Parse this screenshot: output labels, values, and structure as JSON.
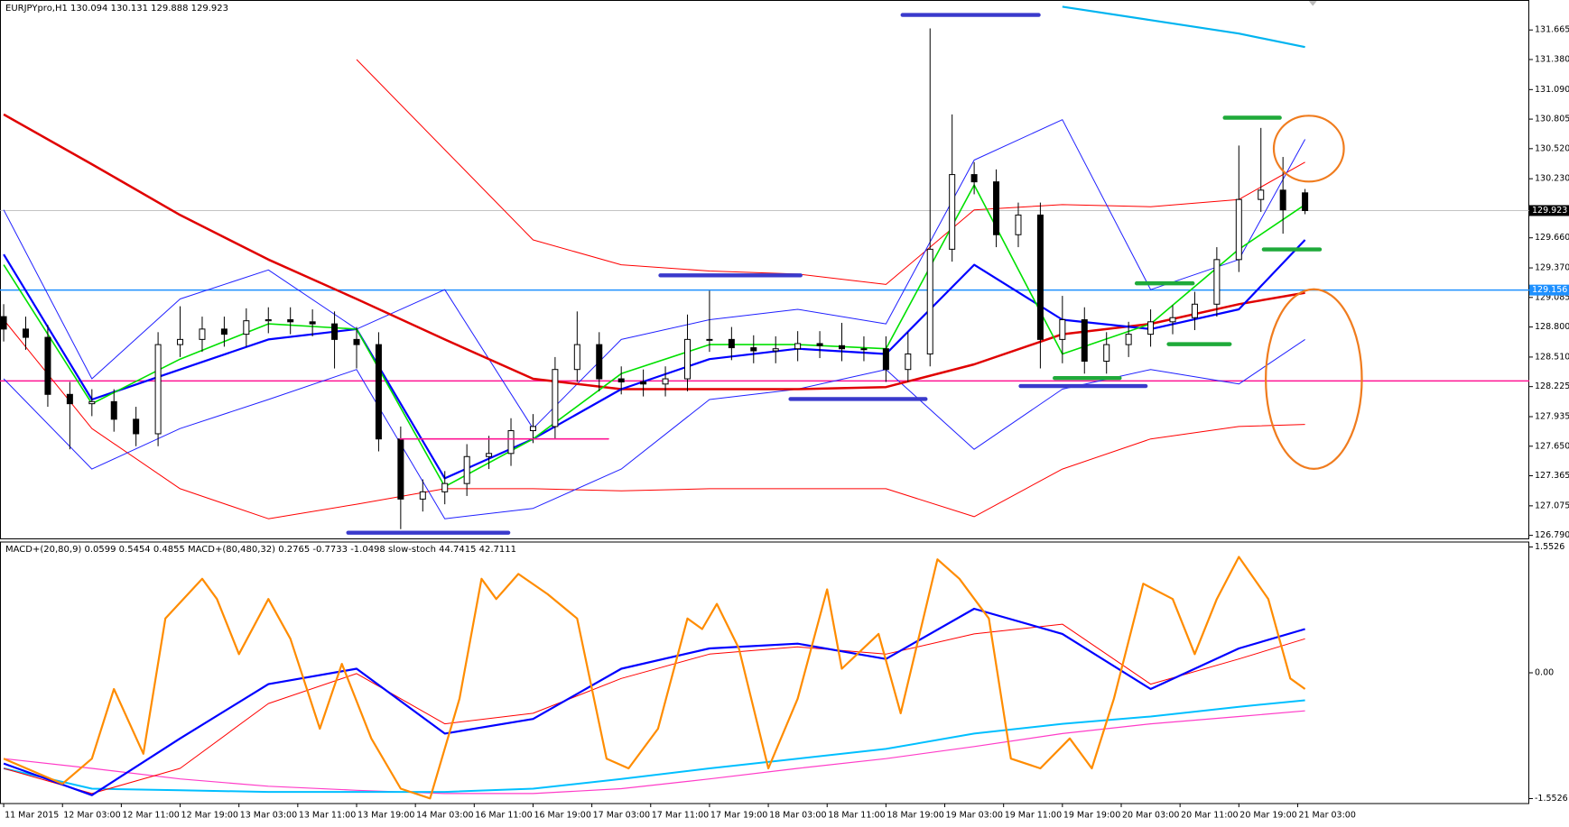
{
  "chart_data": [
    {
      "type": "candlestick",
      "title": "EURJPYpro,H1  130.094 130.131 129.888 129.923",
      "xlim": [
        -0.5,
        207.5
      ],
      "ylim": [
        126.752,
        131.954
      ],
      "yticks": [
        131.665,
        {
          "value": 131.38,
          "label": "131.380"
        },
        {
          "value": 131.09,
          "label": "131.090"
        },
        130.805,
        {
          "value": 130.52,
          "label": "130.520"
        },
        {
          "value": 130.23,
          "label": "130.230"
        },
        {
          "value": 129.66,
          "label": "129.660"
        },
        {
          "value": 129.37,
          "label": "129.370"
        },
        129.085,
        {
          "value": 128.8,
          "label": "128.800"
        },
        {
          "value": 128.51,
          "label": "128.510"
        },
        128.225,
        127.935,
        {
          "value": 127.65,
          "label": "127.650"
        },
        127.365,
        127.075,
        {
          "value": 126.79,
          "label": "126.790"
        }
      ],
      "up_color": "#ffffff",
      "down_color": "#000000",
      "x": [
        0,
        3,
        6,
        9,
        12,
        15,
        18,
        21,
        24,
        27,
        30,
        33,
        36,
        39,
        42,
        45,
        48,
        51,
        54,
        57,
        60,
        63,
        66,
        69,
        72,
        75,
        78,
        81,
        84,
        87,
        90,
        93,
        96,
        99,
        102,
        105,
        108,
        111,
        114,
        117,
        120,
        123,
        126,
        129,
        132,
        135,
        138,
        141,
        144,
        147,
        150,
        153,
        156,
        159,
        162,
        165,
        168,
        171,
        174,
        177
      ],
      "open": [
        128.9,
        128.78,
        128.7,
        128.15,
        128.06,
        128.08,
        127.91,
        127.77,
        128.63,
        128.68,
        128.78,
        128.73,
        128.86,
        128.87,
        128.85,
        128.83,
        128.68,
        128.63,
        127.72,
        127.14,
        127.21,
        127.29,
        127.55,
        127.58,
        127.8,
        127.84,
        128.39,
        128.63,
        128.3,
        128.27,
        128.25,
        128.3,
        128.68,
        128.68,
        128.6,
        128.57,
        128.59,
        128.64,
        128.62,
        128.59,
        128.59,
        128.39,
        128.54,
        129.55,
        130.27,
        130.2,
        129.69,
        129.88,
        128.68,
        128.87,
        128.47,
        128.63,
        128.73,
        128.85,
        128.89,
        129.02,
        129.45,
        130.03,
        130.12,
        130.094
      ],
      "high": [
        129.02,
        128.9,
        128.82,
        128.27,
        128.2,
        128.2,
        128.03,
        128.75,
        129.0,
        128.9,
        128.9,
        128.98,
        128.99,
        128.99,
        128.97,
        128.95,
        128.8,
        128.75,
        127.84,
        127.33,
        127.41,
        127.67,
        127.75,
        127.92,
        127.96,
        128.51,
        128.95,
        128.75,
        128.42,
        128.39,
        128.42,
        128.92,
        129.15,
        128.8,
        128.72,
        128.71,
        128.76,
        128.76,
        128.84,
        128.71,
        128.71,
        128.75,
        131.68,
        130.85,
        130.39,
        130.32,
        130.0,
        130.0,
        129.1,
        128.99,
        128.75,
        128.85,
        128.97,
        129.01,
        129.14,
        129.57,
        130.55,
        130.72,
        130.44,
        130.131
      ],
      "low": [
        128.66,
        128.58,
        128.03,
        127.62,
        127.94,
        127.79,
        127.65,
        127.65,
        128.51,
        128.56,
        128.61,
        128.61,
        128.74,
        128.73,
        128.71,
        128.4,
        128.4,
        127.6,
        126.85,
        127.02,
        127.09,
        127.17,
        127.43,
        127.46,
        127.68,
        127.72,
        128.27,
        128.18,
        128.15,
        128.13,
        128.13,
        128.18,
        128.56,
        128.48,
        128.45,
        128.45,
        128.47,
        128.5,
        128.47,
        128.47,
        128.27,
        128.27,
        128.42,
        129.43,
        130.08,
        129.57,
        129.57,
        128.4,
        128.45,
        128.35,
        128.35,
        128.51,
        128.61,
        128.73,
        128.77,
        128.9,
        129.33,
        129.91,
        129.7,
        129.888
      ],
      "close": [
        128.78,
        128.7,
        128.15,
        128.06,
        128.08,
        127.91,
        127.77,
        128.63,
        128.68,
        128.78,
        128.73,
        128.86,
        128.87,
        128.85,
        128.83,
        128.68,
        128.63,
        127.72,
        127.14,
        127.21,
        127.29,
        127.55,
        127.58,
        127.8,
        127.84,
        128.39,
        128.63,
        128.3,
        128.27,
        128.25,
        128.3,
        128.68,
        128.68,
        128.6,
        128.57,
        128.59,
        128.64,
        128.62,
        128.59,
        128.59,
        128.39,
        128.54,
        129.55,
        130.27,
        130.2,
        129.69,
        129.88,
        128.68,
        128.87,
        128.47,
        128.63,
        128.73,
        128.85,
        128.89,
        129.02,
        129.45,
        130.03,
        130.12,
        129.93,
        129.923
      ],
      "series": [
        {
          "color": "#ff0000",
          "width": 1,
          "x": [
            0,
            12,
            24,
            36,
            48,
            60,
            72,
            84,
            96,
            108,
            120,
            132,
            144,
            156,
            168,
            177
          ],
          "values": [
            null,
            null,
            null,
            null,
            131.38,
            130.51,
            129.64,
            129.4,
            129.34,
            129.31,
            129.21,
            129.93,
            129.98,
            129.96,
            130.03,
            130.39
          ]
        },
        {
          "color": "#ff0000",
          "width": 1,
          "x": [
            0,
            12,
            24,
            36,
            48,
            60,
            72,
            84,
            96,
            108,
            120,
            132,
            144,
            156,
            168,
            177
          ],
          "values": [
            128.87,
            127.82,
            127.24,
            126.95,
            127.09,
            127.24,
            127.24,
            127.22,
            127.24,
            127.24,
            127.24,
            126.97,
            127.43,
            127.72,
            127.84,
            127.86
          ]
        },
        {
          "color": "#2020ff",
          "width": 1,
          "x": [
            0,
            12,
            24,
            36,
            48,
            60,
            72,
            84,
            96,
            108,
            120,
            132,
            144,
            156,
            168,
            177
          ],
          "values": [
            129.93,
            128.3,
            129.07,
            129.35,
            128.78,
            129.16,
            127.82,
            128.68,
            128.87,
            128.97,
            128.83,
            130.41,
            130.8,
            129.16,
            129.45,
            130.61
          ]
        },
        {
          "color": "#2020ff",
          "width": 1,
          "x": [
            0,
            12,
            24,
            36,
            48,
            60,
            72,
            84,
            96,
            108,
            120,
            132,
            144,
            156,
            168,
            177
          ],
          "values": [
            128.3,
            127.43,
            127.82,
            128.1,
            128.39,
            126.95,
            127.05,
            127.43,
            128.1,
            128.2,
            128.39,
            127.62,
            128.2,
            128.39,
            128.25,
            128.68
          ]
        },
        {
          "color": "#e00000",
          "width": 2.5,
          "x": [
            0,
            12,
            24,
            36,
            48,
            60,
            72,
            84,
            96,
            108,
            120,
            132,
            144,
            156,
            168,
            177
          ],
          "values": [
            130.85,
            130.37,
            129.88,
            129.45,
            129.07,
            128.68,
            128.3,
            128.2,
            128.2,
            128.2,
            128.22,
            128.44,
            128.73,
            128.83,
            129.02,
            129.13
          ]
        },
        {
          "color": "#0000ff",
          "width": 2.2,
          "x": [
            0,
            12,
            24,
            36,
            48,
            60,
            72,
            84,
            96,
            108,
            120,
            132,
            144,
            156,
            168,
            177
          ],
          "values": [
            129.5,
            128.1,
            128.39,
            128.68,
            128.78,
            127.34,
            127.72,
            128.2,
            128.49,
            128.59,
            128.54,
            129.4,
            128.87,
            128.78,
            128.97,
            129.64
          ]
        },
        {
          "color": "#00e000",
          "width": 1.6,
          "x": [
            0,
            12,
            24,
            36,
            48,
            60,
            72,
            84,
            96,
            108,
            120,
            132,
            144,
            156,
            168,
            177
          ],
          "values": [
            129.4,
            128.06,
            128.49,
            128.83,
            128.78,
            127.26,
            127.72,
            128.35,
            128.63,
            128.63,
            128.59,
            130.17,
            128.54,
            128.83,
            129.55,
            129.98
          ]
        },
        {
          "color": "#00b4f0",
          "width": 2.2,
          "x": [
            0,
            12,
            24,
            36,
            48,
            60,
            72,
            84,
            96,
            108,
            120,
            132,
            144,
            156,
            168,
            177
          ],
          "values": [
            null,
            null,
            null,
            null,
            null,
            null,
            null,
            null,
            null,
            null,
            null,
            null,
            131.89,
            131.76,
            131.63,
            131.5
          ]
        }
      ],
      "hlines": [
        {
          "value": 129.156,
          "color": "#1e90ff"
        },
        {
          "value": 128.28,
          "color": "#ff1493"
        }
      ],
      "last_price": 129.923
    },
    {
      "type": "line",
      "title": "MACD+(20,80,9) 0.0599 0.5454 0.4855  MACD+(80,480,32) 0.2765 -0.7733 -1.0498  slow-stoch 44.7415 42.7111",
      "xlim": [
        -0.5,
        207.5
      ],
      "ylim": [
        -1.614,
        1.614
      ],
      "yticks": [
        1.5526,
        {
          "value": 0,
          "label": "0.00"
        },
        -1.5526
      ],
      "xticks": [
        {
          "value": 0,
          "label": "11 Mar 2015"
        },
        {
          "value": 8,
          "label": "12 Mar 03:00"
        },
        {
          "value": 16,
          "label": "12 Mar 11:00"
        },
        {
          "value": 24,
          "label": "12 Mar 19:00"
        },
        {
          "value": 32,
          "label": "13 Mar 03:00"
        },
        {
          "value": 40,
          "label": "13 Mar 11:00"
        },
        {
          "value": 48,
          "label": "13 Mar 19:00"
        },
        {
          "value": 56,
          "label": "14 Mar 03:00"
        },
        {
          "value": 64,
          "label": "16 Mar 11:00"
        },
        {
          "value": 72,
          "label": "16 Mar 19:00"
        },
        {
          "value": 80,
          "label": "17 Mar 03:00"
        },
        {
          "value": 88,
          "label": "17 Mar 11:00"
        },
        {
          "value": 96,
          "label": "17 Mar 19:00"
        },
        {
          "value": 104,
          "label": "18 Mar 03:00"
        },
        {
          "value": 112,
          "label": "18 Mar 11:00"
        },
        {
          "value": 120,
          "label": "18 Mar 19:00"
        },
        {
          "value": 128,
          "label": "19 Mar 03:00"
        },
        {
          "value": 136,
          "label": "19 Mar 11:00"
        },
        {
          "value": 144,
          "label": "19 Mar 19:00"
        },
        {
          "value": 152,
          "label": "20 Mar 03:00"
        },
        {
          "value": 160,
          "label": "20 Mar 11:00"
        },
        {
          "value": 168,
          "label": "20 Mar 19:00"
        },
        {
          "value": 176,
          "label": "21 Mar 03:00"
        }
      ],
      "series": [
        {
          "color": "#ff3cc8",
          "width": 1.2,
          "x": [
            0,
            12,
            24,
            36,
            48,
            60,
            72,
            84,
            96,
            108,
            120,
            132,
            144,
            156,
            168,
            177
          ],
          "values": [
            -1.06,
            -1.18,
            -1.31,
            -1.4,
            -1.45,
            -1.49,
            -1.49,
            -1.43,
            -1.31,
            -1.18,
            -1.06,
            -0.91,
            -0.75,
            -0.63,
            -0.54,
            -0.47
          ]
        },
        {
          "color": "#00bfff",
          "width": 2,
          "x": [
            0,
            12,
            24,
            36,
            48,
            60,
            72,
            84,
            96,
            108,
            120,
            132,
            144,
            156,
            168,
            177
          ],
          "values": [
            -1.18,
            -1.43,
            -1.45,
            -1.47,
            -1.47,
            -1.47,
            -1.43,
            -1.31,
            -1.18,
            -1.06,
            -0.94,
            -0.75,
            -0.63,
            -0.54,
            -0.42,
            -0.34
          ]
        },
        {
          "color": "#ff0000",
          "width": 1,
          "x": [
            0,
            12,
            24,
            36,
            48,
            60,
            72,
            84,
            96,
            108,
            120,
            132,
            144,
            156,
            168,
            177
          ],
          "values": [
            -1.18,
            -1.49,
            -1.18,
            -0.38,
            -0.01,
            -0.63,
            -0.5,
            -0.07,
            0.23,
            0.32,
            0.23,
            0.48,
            0.6,
            -0.14,
            0.17,
            0.42
          ]
        },
        {
          "color": "#0000ff",
          "width": 2.2,
          "x": [
            0,
            12,
            24,
            36,
            48,
            60,
            72,
            84,
            96,
            108,
            120,
            132,
            144,
            156,
            168,
            177
          ],
          "values": [
            -1.12,
            -1.51,
            -0.81,
            -0.14,
            0.05,
            -0.75,
            -0.57,
            0.05,
            0.3,
            0.36,
            0.17,
            0.79,
            0.48,
            -0.2,
            0.3,
            0.54
          ]
        },
        {
          "color": "#ff8c00",
          "width": 2.2,
          "x": [
            0,
            8,
            12,
            15,
            19,
            22,
            27,
            29,
            32,
            36,
            39,
            43,
            46,
            50,
            54,
            58,
            62,
            65,
            67,
            70,
            74,
            78,
            82,
            85,
            89,
            93,
            95,
            97,
            100,
            104,
            108,
            112,
            114,
            119,
            122,
            127,
            130,
            134,
            137,
            141,
            145,
            148,
            151,
            155,
            159,
            162,
            165,
            168,
            172,
            175,
            177
          ],
          "values": [
            -1.06,
            -1.37,
            -1.06,
            -0.2,
            -1.0,
            0.67,
            1.16,
            0.91,
            0.23,
            0.91,
            0.42,
            -0.69,
            0.11,
            -0.81,
            -1.43,
            -1.55,
            -0.32,
            1.16,
            0.91,
            1.22,
            0.97,
            0.67,
            -1.06,
            -1.18,
            -0.69,
            0.67,
            0.54,
            0.85,
            0.3,
            -1.18,
            -0.32,
            1.03,
            0.05,
            0.48,
            -0.5,
            1.4,
            1.16,
            0.67,
            -1.06,
            -1.18,
            -0.81,
            -1.18,
            -0.32,
            1.1,
            0.91,
            0.23,
            0.91,
            1.43,
            0.91,
            -0.07,
            -0.2
          ]
        }
      ]
    }
  ]
}
